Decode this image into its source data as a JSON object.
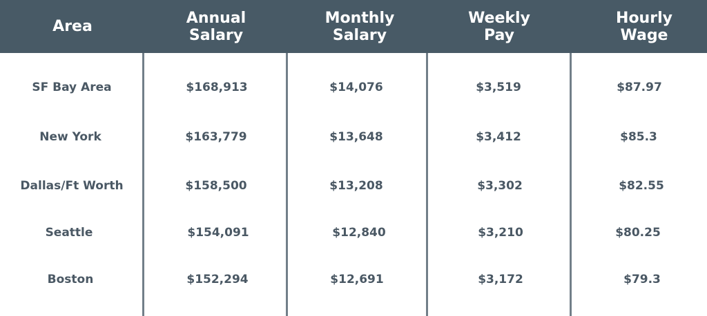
{
  "columns": [
    {
      "line1": "Area",
      "line2": ""
    },
    {
      "line1": "Annual",
      "line2": "Salary"
    },
    {
      "line1": "Monthly",
      "line2": "Salary"
    },
    {
      "line1": "Weekly",
      "line2": "Pay"
    },
    {
      "line1": "Hourly",
      "line2": "Wage"
    }
  ],
  "rows": [
    {
      "area": "SF Bay Area",
      "annual": "$168,913",
      "monthly": "$14,076",
      "weekly": "$3,519",
      "hourly": "$87.97"
    },
    {
      "area": "New York",
      "annual": "$163,779",
      "monthly": "$13,648",
      "weekly": "$3,412",
      "hourly": "$85.3"
    },
    {
      "area": "Dallas/Ft Worth",
      "annual": "$158,500",
      "monthly": "$13,208",
      "weekly": "$3,302",
      "hourly": "$82.55"
    },
    {
      "area": "Seattle",
      "annual": "$154,091",
      "monthly": "$12,840",
      "weekly": "$3,210",
      "hourly": "$80.25"
    },
    {
      "area": "Boston",
      "annual": "$152,294",
      "monthly": "$12,691",
      "weekly": "$3,172",
      "hourly": "$79.3"
    }
  ],
  "colors": {
    "header_bg": "#485a66",
    "header_text": "#ffffff",
    "body_text": "#4a5864",
    "divider": "#727f89"
  }
}
